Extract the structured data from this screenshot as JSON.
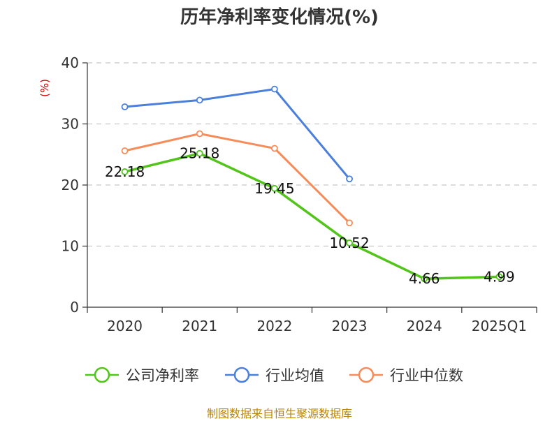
{
  "chart_data": {
    "type": "line",
    "title": "历年净利率变化情况(%)",
    "ylabel": "(%)",
    "xlabel": "",
    "categories": [
      "2020",
      "2021",
      "2022",
      "2023",
      "2024",
      "2025Q1"
    ],
    "ylim": [
      0,
      40
    ],
    "yticks": [
      0,
      10,
      20,
      30,
      40
    ],
    "grid": true,
    "legend_position": "bottom",
    "series": [
      {
        "name": "公司净利率",
        "color": "#52c41a",
        "values": [
          22.18,
          25.18,
          19.45,
          10.52,
          4.66,
          4.99
        ],
        "labels": [
          "22.18",
          "25.18",
          "19.45",
          "10.52",
          "4.66",
          "4.99"
        ]
      },
      {
        "name": "行业均值",
        "color": "#4a7fdb",
        "values": [
          32.8,
          33.9,
          35.7,
          21.0,
          null,
          null
        ]
      },
      {
        "name": "行业中位数",
        "color": "#f58c5a",
        "values": [
          25.6,
          28.4,
          26.0,
          13.8,
          null,
          null
        ]
      }
    ]
  },
  "source": "制图数据来自恒生聚源数据库"
}
